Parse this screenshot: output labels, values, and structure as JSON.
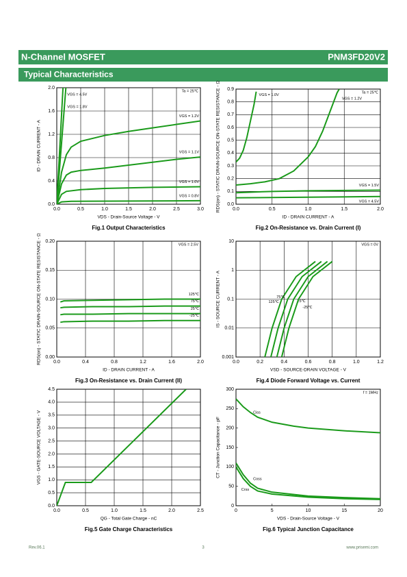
{
  "header": {
    "left": "N-Channel MOSFET",
    "right": "PNM3FD20V2"
  },
  "section_title": "Typical Characteristics",
  "chart_data": [
    {
      "type": "line",
      "title": "Fig.1 Output Characteristics",
      "x_label": "VDS - Drain-Source Voltage - V",
      "y_label": "ID - DRAIN CURRENT - A",
      "annotation": "Ta = 25℃",
      "grid": true,
      "xlim": [
        0,
        3
      ],
      "ylim": [
        0,
        2
      ],
      "xticks": [
        {
          "value": 0,
          "label": "0.0"
        },
        0.5,
        {
          "value": 1,
          "label": "1.0"
        },
        1.5,
        {
          "value": 2,
          "label": "2.0"
        },
        2.5,
        {
          "value": 3,
          "label": "3.0"
        }
      ],
      "yticks": [
        {
          "value": 0,
          "label": "0.0"
        },
        0.4,
        0.8,
        1.2,
        1.6,
        {
          "value": 2,
          "label": "2.0"
        }
      ],
      "series": [
        {
          "name": "VGS = 4.5V",
          "color": "#1a9a1a",
          "x": [
            0,
            0.13
          ],
          "values": [
            0,
            2
          ]
        },
        {
          "name": "VGS = 1.8V",
          "color": "#1a9a1a",
          "x": [
            0,
            0.19
          ],
          "values": [
            0,
            2
          ]
        },
        {
          "name": "VGS = 1.2V",
          "color": "#1a9a1a",
          "x": [
            0,
            0.1,
            0.2,
            0.3,
            0.5,
            1,
            1.5,
            2,
            2.5,
            3
          ],
          "values": [
            0,
            0.55,
            0.85,
            0.98,
            1.08,
            1.18,
            1.25,
            1.31,
            1.37,
            1.43
          ]
        },
        {
          "name": "VGS = 1.1V",
          "color": "#1a9a1a",
          "x": [
            0,
            0.1,
            0.2,
            0.3,
            0.5,
            1,
            1.5,
            2,
            2.5,
            3
          ],
          "values": [
            0,
            0.35,
            0.5,
            0.55,
            0.58,
            0.62,
            0.67,
            0.72,
            0.77,
            0.81
          ]
        },
        {
          "name": "VGS = 1.0V",
          "color": "#1a9a1a",
          "x": [
            0,
            0.1,
            0.2,
            0.5,
            1,
            2,
            3
          ],
          "values": [
            0,
            0.17,
            0.22,
            0.25,
            0.27,
            0.29,
            0.3
          ]
        },
        {
          "name": "VGS = 0.8V",
          "color": "#1a9a1a",
          "x": [
            0,
            0.1,
            0.3,
            3
          ],
          "values": [
            0,
            0.04,
            0.05,
            0.06
          ]
        }
      ]
    },
    {
      "type": "line",
      "title": "Fig.2 On-Resistance vs. Drain Current (I)",
      "x_label": "ID - DRAIN CURRENT - A",
      "y_label": "RDS(on) - STATIC DRAIN-SOURCE ON-STATE RESISTANCE - Ω",
      "annotation": "Ta = 25℃",
      "grid": true,
      "xlim": [
        0,
        2
      ],
      "ylim": [
        0,
        0.9
      ],
      "xticks": [
        {
          "value": 0,
          "label": "0.0"
        },
        0.5,
        {
          "value": 1,
          "label": "1.0"
        },
        1.5,
        {
          "value": 2,
          "label": "2.0"
        }
      ],
      "yticks": [
        {
          "value": 0,
          "label": "0.0"
        },
        0.1,
        0.2,
        0.3,
        0.4,
        0.5,
        0.6,
        0.7,
        0.8,
        0.9
      ],
      "series": [
        {
          "name": "VGS = 1.0V",
          "color": "#1a9a1a",
          "x": [
            0,
            0.05,
            0.1,
            0.15,
            0.2,
            0.25,
            0.28
          ],
          "values": [
            0.33,
            0.36,
            0.42,
            0.52,
            0.65,
            0.78,
            0.88
          ]
        },
        {
          "name": "VGS = 1.2V",
          "color": "#1a9a1a",
          "x": [
            0,
            0.2,
            0.4,
            0.6,
            0.8,
            1,
            1.1,
            1.2,
            1.3,
            1.4,
            1.43
          ],
          "values": [
            0.15,
            0.16,
            0.175,
            0.2,
            0.26,
            0.37,
            0.45,
            0.57,
            0.72,
            0.87,
            0.9
          ]
        },
        {
          "name": "VGS = 1.5V",
          "color": "#1a9a1a",
          "x": [
            0,
            0.5,
            1,
            2
          ],
          "values": [
            0.09,
            0.1,
            0.105,
            0.11
          ]
        },
        {
          "name": "VGS = 4.5V",
          "color": "#1a9a1a",
          "x": [
            0,
            1,
            2
          ],
          "values": [
            0.05,
            0.055,
            0.06
          ]
        }
      ]
    },
    {
      "type": "line",
      "title": "Fig.3 On-Resistance vs. Drain Current (II)",
      "x_label": "ID - DRAIN CURRENT - A",
      "y_label": "RDS(on) - STATIC DRAIN-SOURCE ON-STATE RESISTANCE - Ω",
      "annotation": "VGS = 2.5V",
      "grid": true,
      "xlim": [
        0,
        2
      ],
      "ylim": [
        0,
        0.2
      ],
      "xticks": [
        {
          "value": 0,
          "label": "0.0"
        },
        0.4,
        0.8,
        1.2,
        1.6,
        {
          "value": 2,
          "label": "2.0"
        }
      ],
      "yticks": [
        {
          "value": 0,
          "label": "0.00"
        },
        0.05,
        {
          "value": 0.1,
          "label": "0.10"
        },
        0.15,
        {
          "value": 0.2,
          "label": "0.20"
        }
      ],
      "series": [
        {
          "name": "125℃",
          "color": "#1a9a1a",
          "x": [
            0.05,
            0.1,
            0.5,
            1,
            1.5,
            2
          ],
          "values": [
            0.095,
            0.097,
            0.098,
            0.099,
            0.1,
            0.1
          ]
        },
        {
          "name": "75℃",
          "color": "#1a9a1a",
          "x": [
            0.05,
            0.1,
            0.5,
            1,
            1.5,
            2
          ],
          "values": [
            0.085,
            0.086,
            0.087,
            0.087,
            0.088,
            0.088
          ]
        },
        {
          "name": "25℃",
          "color": "#1a9a1a",
          "x": [
            0.05,
            0.1,
            0.5,
            1,
            1.5,
            2
          ],
          "values": [
            0.073,
            0.074,
            0.074,
            0.075,
            0.075,
            0.075
          ]
        },
        {
          "name": "-25℃",
          "color": "#1a9a1a",
          "x": [
            0.05,
            0.1,
            0.5,
            1,
            1.5,
            2
          ],
          "values": [
            0.06,
            0.061,
            0.062,
            0.062,
            0.063,
            0.063
          ]
        }
      ]
    },
    {
      "type": "line",
      "title": "Fig.4 Diode Forward Voltage vs. Current",
      "x_label": "VSD - SOURCE-DRAIN VOLTAGE - V",
      "y_label": "IS - SOURCE CURRENT - A",
      "annotation": "VGS = 0V",
      "grid": true,
      "log_y": true,
      "xlim": [
        0,
        1.2
      ],
      "ylim": [
        0.001,
        10
      ],
      "xticks": [
        {
          "value": 0,
          "label": "0.0"
        },
        0.2,
        0.4,
        0.6,
        0.8,
        {
          "value": 1,
          "label": "1.0"
        },
        1.2
      ],
      "yticks": [
        0.001,
        0.01,
        0.1,
        1,
        10
      ],
      "series": [
        {
          "name": "125℃",
          "color": "#1a9a1a",
          "x": [
            0.24,
            0.3,
            0.38,
            0.5,
            0.66
          ],
          "values": [
            0.001,
            0.01,
            0.1,
            0.6,
            2
          ]
        },
        {
          "name": "75℃",
          "color": "#1a9a1a",
          "x": [
            0.29,
            0.35,
            0.43,
            0.55,
            0.71
          ],
          "values": [
            0.001,
            0.01,
            0.1,
            0.6,
            2
          ]
        },
        {
          "name": "25℃",
          "color": "#1a9a1a",
          "x": [
            0.34,
            0.4,
            0.48,
            0.6,
            0.76
          ],
          "values": [
            0.001,
            0.01,
            0.1,
            0.6,
            2
          ]
        },
        {
          "name": "-25℃",
          "color": "#1a9a1a",
          "x": [
            0.38,
            0.44,
            0.52,
            0.64,
            0.8
          ],
          "values": [
            0.001,
            0.01,
            0.1,
            0.6,
            2
          ]
        }
      ]
    },
    {
      "type": "line",
      "title": "Fig.5 Gate Charge Characteristics",
      "x_label": "QG - Total Gate Charge - nC",
      "y_label": "VGS - GATE-SOURCE VOLTAGE - V",
      "grid": true,
      "xlim": [
        0,
        2.5
      ],
      "ylim": [
        0,
        4.5
      ],
      "xticks": [
        {
          "value": 0,
          "label": "0.0"
        },
        0.5,
        {
          "value": 1,
          "label": "1.0"
        },
        1.5,
        {
          "value": 2,
          "label": "2.0"
        },
        2.5
      ],
      "yticks": [
        {
          "value": 0,
          "label": "0.0"
        },
        0.5,
        {
          "value": 1,
          "label": "1.0"
        },
        1.5,
        {
          "value": 2,
          "label": "2.0"
        },
        2.5,
        {
          "value": 3,
          "label": "3.0"
        },
        3.5,
        {
          "value": 4,
          "label": "4.0"
        },
        4.5
      ],
      "series": [
        {
          "color": "#1a9a1a",
          "x": [
            0,
            0.15,
            0.6,
            2.25
          ],
          "values": [
            0,
            0.9,
            0.9,
            4.5
          ]
        }
      ]
    },
    {
      "type": "line",
      "title": "Fig.6 Typical Junction Capacitance",
      "x_label": "VDS - Drain-Source Voltage - V",
      "y_label": "CT - Junction Capacitance - pF",
      "annotation": "f = 1MHz",
      "grid": false,
      "xlim": [
        0,
        20
      ],
      "ylim": [
        0,
        300
      ],
      "xticks": [
        0,
        5,
        10,
        15,
        20
      ],
      "yticks": [
        0,
        50,
        100,
        150,
        200,
        250,
        300
      ],
      "series": [
        {
          "name": "Ciss",
          "color": "#1a9a1a",
          "x": [
            0,
            1,
            2,
            3,
            5,
            8,
            10,
            15,
            20
          ],
          "values": [
            275,
            255,
            240,
            228,
            215,
            205,
            200,
            193,
            188
          ]
        },
        {
          "name": "Coss",
          "color": "#1a9a1a",
          "x": [
            0,
            1,
            2,
            3,
            5,
            10,
            15,
            20
          ],
          "values": [
            110,
            80,
            58,
            45,
            35,
            25,
            21,
            18
          ]
        },
        {
          "name": "Crss",
          "color": "#1a9a1a",
          "x": [
            0,
            1,
            2,
            3,
            5,
            10,
            15,
            20
          ],
          "values": [
            100,
            70,
            50,
            38,
            30,
            22,
            18,
            16
          ]
        }
      ]
    }
  ],
  "footer": {
    "left": "Rev.06.1",
    "center": "3",
    "right": "www.prisemi.com"
  }
}
